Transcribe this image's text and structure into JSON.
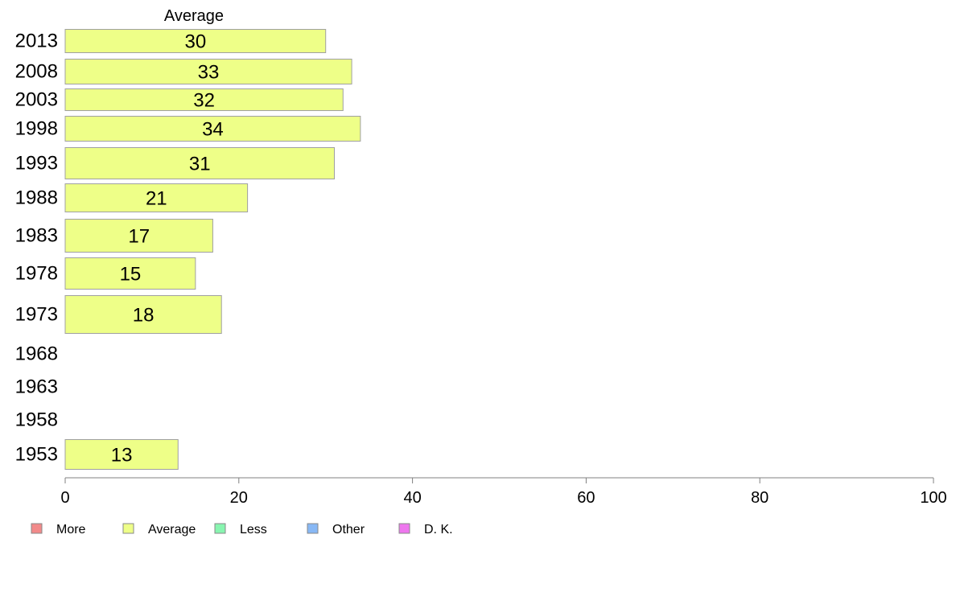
{
  "chart_data": {
    "type": "bar",
    "orientation": "horizontal",
    "column_title": "Average",
    "categories": [
      "2013",
      "2008",
      "2003",
      "1998",
      "1993",
      "1988",
      "1983",
      "1978",
      "1973",
      "1968",
      "1963",
      "1958",
      "1953"
    ],
    "series": [
      {
        "name": "Average",
        "values": [
          30,
          33,
          32,
          34,
          31,
          21,
          17,
          15,
          18,
          null,
          null,
          null,
          13
        ]
      }
    ],
    "xlim": [
      0,
      100
    ],
    "xticks": [
      0,
      20,
      40,
      60,
      80,
      100
    ],
    "grid": false,
    "legend": {
      "placement": "bottom-left",
      "entries": [
        {
          "label": "More",
          "color": "#f28a8a"
        },
        {
          "label": "Average",
          "color": "#eeff88"
        },
        {
          "label": "Less",
          "color": "#88f5b0"
        },
        {
          "label": "Other",
          "color": "#88b8f5"
        },
        {
          "label": "D. K.",
          "color": "#ee77ee"
        }
      ]
    },
    "colors": {
      "bar_fill": "#eeff88",
      "bar_stroke": "#a0a0a0",
      "axis": "#808080"
    }
  }
}
